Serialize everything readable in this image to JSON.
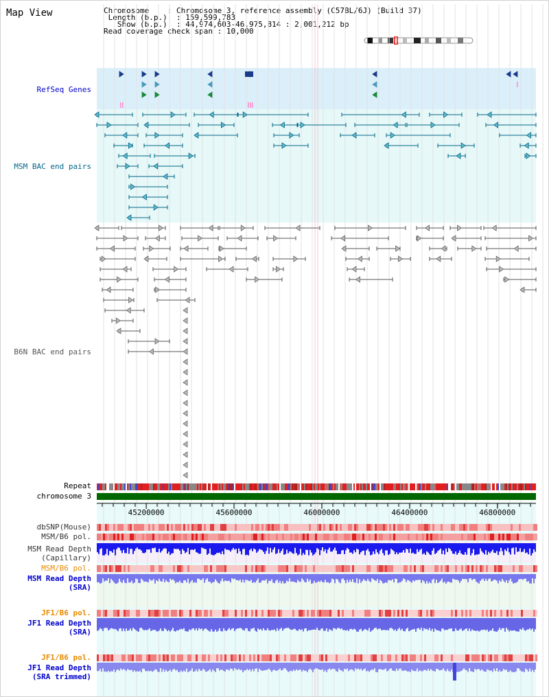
{
  "view": {
    "title": "Map View",
    "info": {
      "chromosome_label": "Chromosome",
      "chromosome_value": "Chromosome 3, reference assembly (C57BL/6J) (Build 37)",
      "length_label": "Length (b.p.)",
      "length_value": "159,599,783",
      "show_label": "Show (b.p.)",
      "show_value": "44,974,603-46,975,814 : 2,001,212 bp",
      "coverage_label": "Read coverage check span",
      "coverage_value": "10,000"
    }
  },
  "tracks": {
    "refseq": "RefSeq Genes",
    "msm_bac": "MSM BAC end pairs",
    "b6n_bac": "B6N BAC end pairs",
    "repeat": "Repeat",
    "chromosome": "chromosome 3",
    "dbsnp": "dbSNP(Mouse)",
    "msm_b6_pol_1": "MSM/B6 pol.",
    "msm_read_depth_cap_1": "MSM Read Depth",
    "msm_read_depth_cap_2": "(Capillary)",
    "msm_b6_pol_2": "MSM/B6 pol.",
    "msm_read_depth_sra_1": "MSM Read Depth",
    "msm_read_depth_sra_2": "(SRA)",
    "jf1_b6_pol_1": "JF1/B6 pol.",
    "jf1_read_depth_sra_1": "JF1 Read Depth",
    "jf1_read_depth_sra_2": "(SRA)",
    "jf1_b6_pol_2": "JF1/B6 pol.",
    "jf1_read_depth_trim_1": "JF1 Read Depth",
    "jf1_read_depth_trim_2": "(SRA trimmed)"
  },
  "axis": {
    "start_bp": 44974603,
    "end_bp": 46975814,
    "tick_labels": [
      "45200000",
      "45600000",
      "46000000",
      "46400000",
      "46800000"
    ]
  },
  "colors": {
    "refseq_bg": "#dbeffa",
    "msm_bg": "#e6f8f8",
    "refseq_label": "#0000cc",
    "msm_label": "#006688",
    "b6n_label": "#555555",
    "chromosome_bar": "#006600",
    "pol_label": "#e68a00",
    "depth_label": "#0000cc"
  }
}
